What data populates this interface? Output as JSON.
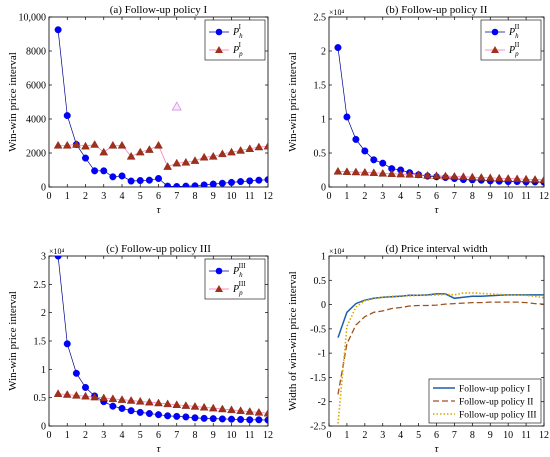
{
  "chart_data": [
    {
      "type": "line",
      "title": "(a) Follow-up policy I",
      "xlabel": "τ",
      "ylabel": "Win-win price interval",
      "xlim": [
        0,
        12
      ],
      "ylim": [
        0,
        10000
      ],
      "xticks": [
        0,
        1,
        2,
        3,
        4,
        5,
        6,
        7,
        8,
        9,
        10,
        11,
        12
      ],
      "yticks": [
        0,
        2000,
        4000,
        6000,
        8000,
        10000
      ],
      "ytick_labels": [
        "0",
        "2000",
        "4000",
        "6000",
        "8000",
        "10,000"
      ],
      "exponent_label": "",
      "legend_position": "top-right",
      "x": [
        0.5,
        1,
        1.5,
        2,
        2.5,
        3,
        3.5,
        4,
        4.5,
        5,
        5.5,
        6,
        6.5,
        7,
        7.5,
        8,
        8.5,
        9,
        9.5,
        10,
        10.5,
        11,
        11.5,
        12
      ],
      "series": [
        {
          "name": "P",
          "sub": "h",
          "sup": "I",
          "color": "#0000ff",
          "marker": "circle",
          "line_color": "#00008b",
          "values": [
            9250,
            4200,
            2500,
            1700,
            950,
            950,
            600,
            650,
            350,
            380,
            400,
            500,
            50,
            30,
            50,
            70,
            120,
            170,
            220,
            270,
            320,
            360,
            400,
            430
          ]
        },
        {
          "name": "P",
          "sub": "p",
          "sup": "I",
          "color": "#a0301a",
          "marker": "triangle",
          "line_color": "#ff69b4",
          "values": [
            2450,
            2450,
            2500,
            2400,
            2500,
            2050,
            2450,
            2450,
            1800,
            2050,
            2200,
            2450,
            1200,
            1400,
            1450,
            1550,
            1750,
            1800,
            1950,
            2050,
            2150,
            2250,
            2350,
            2400
          ]
        }
      ],
      "annotation_marker": {
        "x": 7.0,
        "y": 4700
      }
    },
    {
      "type": "line",
      "title": "(b) Follow-up policy II",
      "xlabel": "τ",
      "ylabel": "Win-win price interval",
      "xlim": [
        0,
        12
      ],
      "ylim": [
        0,
        25000
      ],
      "xticks": [
        0,
        1,
        2,
        3,
        4,
        5,
        6,
        7,
        8,
        9,
        10,
        11,
        12
      ],
      "yticks": [
        0,
        5000,
        10000,
        15000,
        20000,
        25000
      ],
      "ytick_labels": [
        "0",
        "0.5",
        "1",
        "1.5",
        "2",
        "2.5"
      ],
      "exponent_label": "×10⁴",
      "legend_position": "top-right",
      "x": [
        0.5,
        1,
        1.5,
        2,
        2.5,
        3,
        3.5,
        4,
        4.5,
        5,
        5.5,
        6,
        6.5,
        7,
        7.5,
        8,
        8.5,
        9,
        9.5,
        10,
        10.5,
        11,
        11.5,
        12
      ],
      "series": [
        {
          "name": "P",
          "sub": "h",
          "sup": "II",
          "color": "#0000ff",
          "marker": "circle",
          "line_color": "#00008b",
          "values": [
            20500,
            10300,
            7000,
            5300,
            4000,
            3500,
            2700,
            2500,
            2100,
            1800,
            1600,
            1500,
            1400,
            1250,
            1100,
            1050,
            1000,
            900,
            850,
            800,
            800,
            750,
            750,
            700
          ]
        },
        {
          "name": "P",
          "sub": "p",
          "sup": "II",
          "color": "#a0301a",
          "marker": "triangle",
          "line_color": "#ff69b4",
          "values": [
            2300,
            2250,
            2200,
            2150,
            2100,
            2000,
            1950,
            1900,
            1850,
            1800,
            1700,
            1650,
            1600,
            1550,
            1500,
            1450,
            1400,
            1350,
            1300,
            1250,
            1200,
            1150,
            1100,
            1050
          ]
        }
      ]
    },
    {
      "type": "line",
      "title": "(c) Follow-up policy III",
      "xlabel": "τ",
      "ylabel": "Win-win price interval",
      "xlim": [
        0,
        12
      ],
      "ylim": [
        0,
        30000
      ],
      "xticks": [
        0,
        1,
        2,
        3,
        4,
        5,
        6,
        7,
        8,
        9,
        10,
        11,
        12
      ],
      "yticks": [
        0,
        5000,
        10000,
        15000,
        20000,
        25000,
        30000
      ],
      "ytick_labels": [
        "0",
        "0.5",
        "1",
        "1.5",
        "2",
        "2.5",
        "3"
      ],
      "exponent_label": "×10⁴",
      "legend_position": "top-right",
      "x": [
        0.5,
        1,
        1.5,
        2,
        2.5,
        3,
        3.5,
        4,
        4.5,
        5,
        5.5,
        6,
        6.5,
        7,
        7.5,
        8,
        8.5,
        9,
        9.5,
        10,
        10.5,
        11,
        11.5,
        12
      ],
      "series": [
        {
          "name": "P",
          "sub": "h",
          "sup": "III",
          "color": "#0000ff",
          "marker": "circle",
          "line_color": "#00008b",
          "values": [
            30000,
            14500,
            9300,
            6800,
            5300,
            4300,
            3500,
            3100,
            2700,
            2400,
            2200,
            2000,
            1800,
            1700,
            1600,
            1450,
            1350,
            1300,
            1250,
            1200,
            1150,
            1100,
            1100,
            1050
          ]
        },
        {
          "name": "P",
          "sub": "p",
          "sup": "III",
          "color": "#a0301a",
          "marker": "triangle",
          "line_color": "#ff69b4",
          "values": [
            5700,
            5550,
            5400,
            5250,
            5100,
            4950,
            4800,
            4650,
            4500,
            4350,
            4200,
            4050,
            3900,
            3750,
            3600,
            3450,
            3300,
            3150,
            3000,
            2850,
            2700,
            2550,
            2400,
            2250
          ]
        }
      ]
    },
    {
      "type": "line",
      "title": "(d) Price interval width",
      "xlabel": "τ",
      "ylabel": "Width of win-win price interval",
      "xlim": [
        0,
        12
      ],
      "ylim": [
        -2.5,
        1
      ],
      "xticks": [
        0,
        1,
        2,
        3,
        4,
        5,
        6,
        7,
        8,
        9,
        10,
        11,
        12
      ],
      "yticks": [
        -2.5,
        -2,
        -1.5,
        -1,
        -0.5,
        0,
        0.5,
        1
      ],
      "ytick_labels": [
        "-2.5",
        "-2",
        "-1.5",
        "-1",
        "-0.5",
        "0",
        "0.5",
        "1"
      ],
      "exponent_label": "×10⁴",
      "legend_position": "bottom-right",
      "x": [
        0.5,
        1,
        1.5,
        2,
        2.5,
        3,
        3.5,
        4,
        4.5,
        5,
        5.5,
        6,
        6.5,
        7,
        7.5,
        8,
        8.5,
        9,
        9.5,
        10,
        10.5,
        11,
        11.5,
        12
      ],
      "series": [
        {
          "name": "Follow-up policy I",
          "color": "#1f5fa8",
          "dash": "",
          "width": 1.5,
          "values": [
            -0.68,
            -0.16,
            0.02,
            0.09,
            0.13,
            0.15,
            0.16,
            0.17,
            0.19,
            0.19,
            0.2,
            0.22,
            0.22,
            0.13,
            0.15,
            0.17,
            0.17,
            0.18,
            0.19,
            0.2,
            0.2,
            0.2,
            0.2,
            0.2
          ]
        },
        {
          "name": "Follow-up policy II",
          "color": "#a0521d",
          "dash": "6,3",
          "width": 1.3,
          "values": [
            -1.85,
            -0.81,
            -0.42,
            -0.25,
            -0.16,
            -0.13,
            -0.08,
            -0.06,
            -0.03,
            -0.02,
            -0.02,
            -0.01,
            0.01,
            0.02,
            0.03,
            0.04,
            0.04,
            0.05,
            0.05,
            0.05,
            0.05,
            0.04,
            0.02,
            0.01
          ]
        },
        {
          "name": "Follow-up policy III",
          "color": "#d4a800",
          "dash": "1.5,2",
          "width": 1.6,
          "values": [
            -2.45,
            -0.45,
            -0.05,
            0.08,
            0.12,
            0.15,
            0.17,
            0.18,
            0.18,
            0.19,
            0.19,
            0.2,
            0.21,
            0.2,
            0.24,
            0.24,
            0.23,
            0.22,
            0.21,
            0.2,
            0.2,
            0.19,
            0.17,
            0.14
          ]
        }
      ]
    }
  ]
}
